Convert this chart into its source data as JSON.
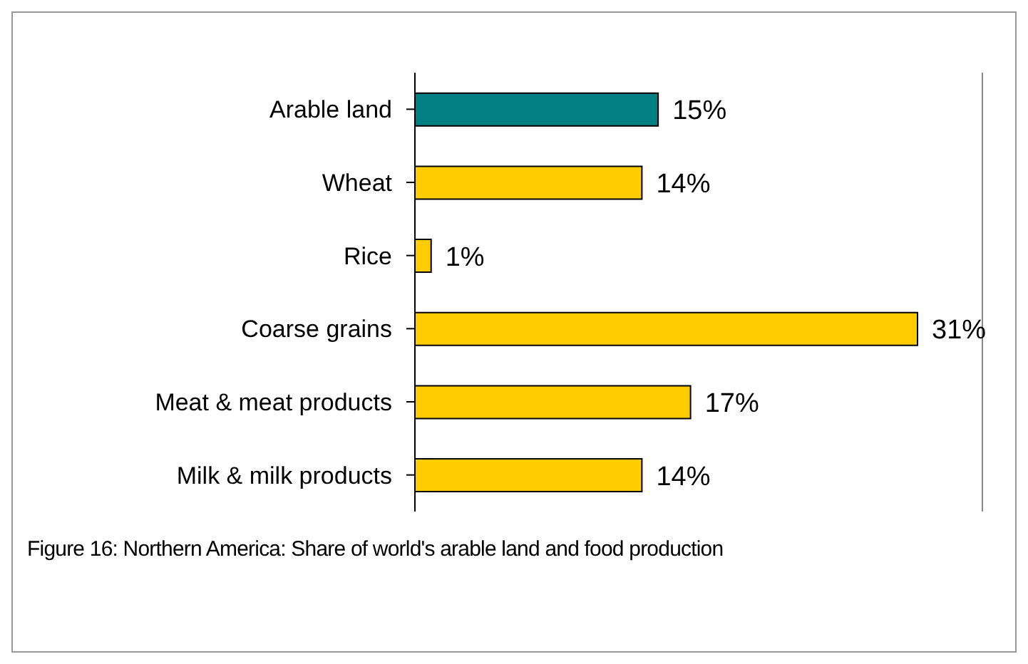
{
  "chart_data": {
    "type": "bar",
    "orientation": "horizontal",
    "categories": [
      "Arable land",
      "Wheat",
      "Rice",
      "Coarse grains",
      "Meat & meat products",
      "Milk & milk products"
    ],
    "values": [
      15,
      14,
      1,
      31,
      17,
      14
    ],
    "colors": [
      "#008080",
      "#ffcc00",
      "#ffcc00",
      "#ffcc00",
      "#ffcc00",
      "#ffcc00"
    ],
    "value_labels": [
      "15%",
      "14%",
      "1%",
      "31%",
      "17%",
      "14%"
    ],
    "xlim": [
      0,
      35
    ],
    "tick_labels": "y",
    "grid": false,
    "annotations": [
      "Figure 16: Northern America: Share of world's arable land and food production"
    ]
  }
}
